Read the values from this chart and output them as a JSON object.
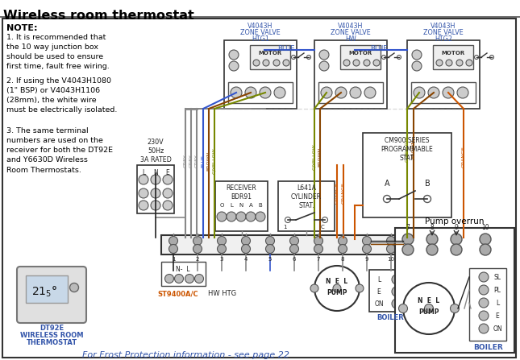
{
  "title": "Wireless room thermostat",
  "bg_color": "#ffffff",
  "title_color": "#000000",
  "blue_color": "#3355aa",
  "orange_color": "#cc5500",
  "grey_color": "#888888",
  "note_bold": "NOTE:",
  "note1": "1. It is recommended that\nthe 10 way junction box\nshould be used to ensure\nfirst time, fault free wiring.",
  "note2": "2. If using the V4043H1080\n(1\" BSP) or V4043H1106\n(28mm), the white wire\nmust be electrically isolated.",
  "note3": "3. The same terminal\nnumbers are used on the\nreceiver for both the DT92E\nand Y6630D Wireless\nRoom Thermostats.",
  "frost_text": "For Frost Protection information - see page 22",
  "dt92e_label1": "DT92E",
  "dt92e_label2": "WIRELESS ROOM",
  "dt92e_label3": "THERMOSTAT",
  "pump_overrun": "Pump overrun",
  "zone1_label": "V4043H\nZONE VALVE\nHTG1",
  "zone2_label": "V4043H\nZONE VALVE\nHW",
  "zone3_label": "V4043H\nZONE VALVE\nHTG2",
  "power_label": "230V\n50Hz\n3A RATED",
  "st9400": "ST9400A/C",
  "cm900": "CM900 SERIES\nPROGRAMMABLE\nSTAT.",
  "receiver": "RECEIVER\nBDR91",
  "cylinder": "L641A\nCYLINDER\nSTAT.",
  "wire_grey": "#888888",
  "wire_blue": "#3355cc",
  "wire_brown": "#884400",
  "wire_gyellow": "#778800",
  "wire_orange": "#cc5500",
  "wire_black": "#222222"
}
